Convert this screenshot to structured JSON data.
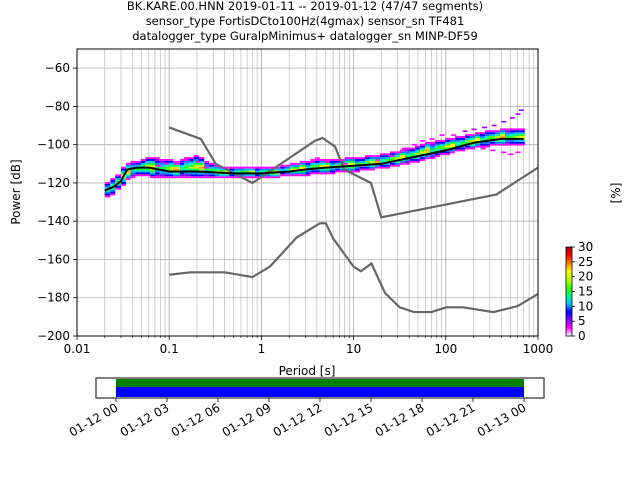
{
  "title_lines": [
    "BK.KARE.00.HNN   2019-01-11 -- 2019-01-12  (47/47 segments)",
    "sensor_type FortisDCto100Hz(4gmax) sensor_sn TF481",
    "datalogger_type GuralpMinimus+ datalogger_sn MINP-DF59"
  ],
  "chart_data": {
    "type": "heatmap",
    "xlabel": "Period [s]",
    "ylabel": "Power [dB]",
    "xscale": "log",
    "xlim": [
      0.01,
      1000
    ],
    "ylim": [
      -200,
      -50
    ],
    "xticks": [
      {
        "v": 0.01,
        "label": "0.01"
      },
      {
        "v": 0.1,
        "label": "0.1"
      },
      {
        "v": 1,
        "label": "1"
      },
      {
        "v": 10,
        "label": "10"
      },
      {
        "v": 100,
        "label": "100"
      },
      {
        "v": 1000,
        "label": "1000"
      }
    ],
    "yticks": [
      -200,
      -180,
      -160,
      -140,
      -120,
      -100,
      -80,
      -60
    ],
    "grid": true,
    "colorbar": {
      "label": "[%]",
      "min": 0,
      "max": 30,
      "ticks": [
        0,
        5,
        10,
        15,
        20,
        25,
        30
      ],
      "colors": [
        "#ffffff",
        "#ff00ff",
        "#8000ff",
        "#0000ff",
        "#00c0ff",
        "#00ff80",
        "#40ff00",
        "#c0ff00",
        "#ffff00",
        "#ff8000",
        "#ff0000",
        "#a00000"
      ]
    },
    "median_curve": [
      [
        0.02,
        -124
      ],
      [
        0.025,
        -122
      ],
      [
        0.03,
        -119
      ],
      [
        0.035,
        -113
      ],
      [
        0.045,
        -112
      ],
      [
        0.06,
        -112
      ],
      [
        0.1,
        -114
      ],
      [
        0.2,
        -114
      ],
      [
        0.5,
        -115
      ],
      [
        1,
        -115
      ],
      [
        2,
        -114
      ],
      [
        3,
        -113
      ],
      [
        5,
        -112
      ],
      [
        10,
        -111
      ],
      [
        20,
        -110
      ],
      [
        50,
        -106
      ],
      [
        100,
        -103
      ],
      [
        200,
        -99
      ],
      [
        400,
        -97
      ],
      [
        700,
        -97
      ]
    ],
    "nhnm_curve": [
      [
        0.1,
        -91
      ],
      [
        0.22,
        -97
      ],
      [
        0.32,
        -110
      ],
      [
        0.8,
        -120
      ],
      [
        3.8,
        -98
      ],
      [
        4.6,
        -96.5
      ],
      [
        6.3,
        -101
      ],
      [
        7.9,
        -113
      ],
      [
        15.4,
        -120
      ],
      [
        20,
        -138
      ],
      [
        354.8,
        -126
      ],
      [
        1000,
        -112
      ]
    ],
    "nlnm_curve": [
      [
        0.1,
        -168
      ],
      [
        0.17,
        -166.7
      ],
      [
        0.4,
        -166.7
      ],
      [
        0.8,
        -169.2
      ],
      [
        1.24,
        -163.7
      ],
      [
        2.4,
        -148.6
      ],
      [
        4.3,
        -141.1
      ],
      [
        5,
        -141.1
      ],
      [
        6,
        -149
      ],
      [
        10,
        -163.8
      ],
      [
        12,
        -166.2
      ],
      [
        15.6,
        -162.1
      ],
      [
        21.9,
        -177.5
      ],
      [
        31.6,
        -185
      ],
      [
        45,
        -187.5
      ],
      [
        70,
        -187.5
      ],
      [
        101,
        -185
      ],
      [
        154,
        -185
      ],
      [
        328,
        -187.5
      ],
      [
        600,
        -184.4
      ],
      [
        1000,
        -178
      ]
    ],
    "density_cells": [
      [
        0.02,
        -127,
        -120,
        1
      ],
      [
        0.023,
        -126,
        -118,
        1
      ],
      [
        0.026,
        -123,
        -116,
        2
      ],
      [
        0.03,
        -121,
        -112,
        2
      ],
      [
        0.034,
        -118,
        -110,
        3
      ],
      [
        0.038,
        -117,
        -109,
        3
      ],
      [
        0.043,
        -116,
        -109,
        3
      ],
      [
        0.049,
        -116,
        -108,
        3
      ],
      [
        0.055,
        -116,
        -107,
        3
      ],
      [
        0.062,
        -117,
        -107,
        3
      ],
      [
        0.07,
        -117,
        -107,
        3
      ],
      [
        0.079,
        -117,
        -108,
        3
      ],
      [
        0.09,
        -117,
        -108,
        3
      ],
      [
        0.1,
        -117,
        -108,
        3
      ],
      [
        0.11,
        -117,
        -109,
        3
      ],
      [
        0.13,
        -117,
        -108,
        3
      ],
      [
        0.145,
        -117,
        -107,
        3
      ],
      [
        0.165,
        -117,
        -107,
        3
      ],
      [
        0.185,
        -117,
        -106,
        3
      ],
      [
        0.21,
        -117,
        -107,
        3
      ],
      [
        0.24,
        -117,
        -109,
        3
      ],
      [
        0.27,
        -117,
        -110,
        3
      ],
      [
        0.31,
        -117,
        -111,
        3
      ],
      [
        0.35,
        -117,
        -112,
        3
      ],
      [
        0.4,
        -117,
        -112,
        3
      ],
      [
        0.45,
        -117,
        -112,
        3
      ],
      [
        0.51,
        -117,
        -112,
        3
      ],
      [
        0.58,
        -117,
        -112,
        3
      ],
      [
        0.66,
        -117,
        -112,
        3
      ],
      [
        0.75,
        -117,
        -112,
        3
      ],
      [
        0.85,
        -117,
        -112,
        3
      ],
      [
        0.96,
        -117,
        -112,
        3
      ],
      [
        1.09,
        -117,
        -112,
        3
      ],
      [
        1.24,
        -117,
        -112,
        3
      ],
      [
        1.4,
        -117,
        -112,
        3
      ],
      [
        1.6,
        -116,
        -111,
        3
      ],
      [
        1.8,
        -116,
        -111,
        3
      ],
      [
        2.05,
        -116,
        -110,
        3
      ],
      [
        2.3,
        -116,
        -110,
        3
      ],
      [
        2.6,
        -116,
        -109,
        3
      ],
      [
        3.0,
        -116,
        -109,
        3
      ],
      [
        3.4,
        -115,
        -108,
        3
      ],
      [
        3.8,
        -115,
        -108,
        3
      ],
      [
        4.3,
        -115,
        -108,
        3
      ],
      [
        4.9,
        -115,
        -108,
        3
      ],
      [
        5.5,
        -115,
        -108,
        3
      ],
      [
        6.3,
        -114,
        -108,
        3
      ],
      [
        7.1,
        -114,
        -108,
        3
      ],
      [
        8.0,
        -114,
        -107,
        3
      ],
      [
        9.1,
        -114,
        -107,
        3
      ],
      [
        10.3,
        -114,
        -107,
        3
      ],
      [
        11.7,
        -113,
        -107,
        3
      ],
      [
        13.3,
        -113,
        -106,
        3
      ],
      [
        15.0,
        -113,
        -106,
        3
      ],
      [
        17.0,
        -112,
        -106,
        3
      ],
      [
        19.3,
        -112,
        -105,
        3
      ],
      [
        21.9,
        -112,
        -105,
        3
      ],
      [
        24.8,
        -111,
        -104,
        3
      ],
      [
        28.1,
        -111,
        -104,
        3
      ],
      [
        31.8,
        -110,
        -103,
        3
      ],
      [
        36.0,
        -110,
        -102,
        3
      ],
      [
        40.8,
        -109,
        -102,
        3
      ],
      [
        46.3,
        -109,
        -101,
        3
      ],
      [
        52.4,
        -108,
        -100,
        3
      ],
      [
        59.4,
        -107,
        -99,
        3
      ],
      [
        67.3,
        -107,
        -99,
        3
      ],
      [
        76.2,
        -106,
        -98,
        3
      ],
      [
        86.4,
        -105,
        -98,
        3
      ],
      [
        97.9,
        -105,
        -97,
        3
      ],
      [
        110.9,
        -104,
        -97,
        3
      ],
      [
        125.6,
        -103,
        -96,
        3
      ],
      [
        142.3,
        -103,
        -96,
        3
      ],
      [
        161.3,
        -102,
        -95,
        3
      ],
      [
        182.7,
        -102,
        -95,
        3
      ],
      [
        207.0,
        -101,
        -94,
        3
      ],
      [
        234.5,
        -101,
        -94,
        3
      ],
      [
        265.7,
        -101,
        -93,
        3
      ],
      [
        301.0,
        -100,
        -93,
        3
      ],
      [
        341.1,
        -100,
        -93,
        3
      ],
      [
        386.4,
        -100,
        -92,
        3
      ],
      [
        437.8,
        -100,
        -92,
        3
      ],
      [
        496.1,
        -100,
        -92,
        3
      ],
      [
        562.1,
        -100,
        -92,
        3
      ],
      [
        636.9,
        -100,
        -92,
        3
      ]
    ],
    "sparse_cells": [
      [
        0.075,
        -111
      ],
      [
        0.09,
        -110
      ],
      [
        0.12,
        -110
      ],
      [
        0.15,
        -108
      ],
      [
        0.2,
        -109
      ],
      [
        0.25,
        -112
      ],
      [
        2.2,
        -110
      ],
      [
        3.5,
        -109
      ],
      [
        4,
        -107
      ],
      [
        5,
        -109
      ],
      [
        8,
        -110
      ],
      [
        12,
        -111
      ],
      [
        18,
        -108
      ],
      [
        25,
        -106
      ],
      [
        30,
        -104
      ],
      [
        35,
        -102
      ],
      [
        45,
        -100
      ],
      [
        55,
        -98
      ],
      [
        70,
        -97
      ],
      [
        90,
        -95
      ],
      [
        120,
        -95
      ],
      [
        160,
        -93
      ],
      [
        200,
        -92
      ],
      [
        260,
        -91
      ],
      [
        330,
        -90
      ],
      [
        420,
        -88
      ],
      [
        520,
        -86
      ],
      [
        600,
        -84
      ],
      [
        650,
        -82
      ],
      [
        600,
        -104
      ],
      [
        500,
        -105
      ],
      [
        420,
        -104
      ],
      [
        320,
        -103
      ],
      [
        250,
        -102
      ]
    ]
  },
  "timeline": {
    "start_label": "01-12 00",
    "tick_labels": [
      "01-12 00",
      "01-12 03",
      "01-12 06",
      "01-12 09",
      "01-12 12",
      "01-12 15",
      "01-12 18",
      "01-12 21",
      "01-13 00"
    ],
    "coverage_color": "#008000",
    "data_color": "#0000ff"
  }
}
